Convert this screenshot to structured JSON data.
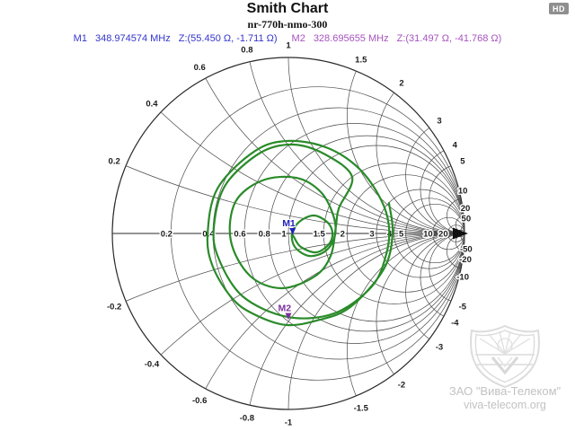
{
  "header": {
    "title": "Smith Chart",
    "subtitle": "nr-770h-nmo-300"
  },
  "badge": {
    "label": "HD"
  },
  "markers": [
    {
      "id": "M1",
      "frequency": "348.974574 MHz",
      "impedance": "Z:(55.450 Ω, -1.711 Ω)",
      "color": "#3434cd"
    },
    {
      "id": "M2",
      "frequency": "328.695655 MHz",
      "impedance": "Z:(31.497 Ω, -41.768 Ω)",
      "color": "#a653c0"
    }
  ],
  "watermark": {
    "line1": "ЗАО \"Вива-Телеком\"",
    "line2": "viva-telecom.org"
  },
  "chart_data": {
    "type": "smith",
    "title": "Smith Chart",
    "trace_name": "nr-770h-nmo-300",
    "grid_color": "#4a4a4a",
    "outer_color": "#2a2a2a",
    "resistance_circles": [
      0.2,
      0.4,
      0.6,
      0.8,
      1,
      1.5,
      2,
      3,
      4,
      5,
      10,
      20,
      50
    ],
    "reactance_values": [
      0.2,
      0.4,
      0.6,
      0.8,
      1,
      1.5,
      2,
      3,
      4,
      5,
      10,
      20,
      50
    ],
    "axis_label_values": [
      0.2,
      0.4,
      0.6,
      0.8,
      1,
      1.5,
      2,
      3,
      4,
      5,
      10,
      20
    ],
    "trace": {
      "color": "#2a8b2a",
      "gamma_points": [
        [
          0.571,
          0.173
        ],
        [
          0.592,
          0.0
        ],
        [
          0.541,
          -0.204
        ],
        [
          0.352,
          -0.418
        ],
        [
          0.168,
          -0.493
        ],
        [
          -0.015,
          -0.52
        ],
        [
          -0.199,
          -0.457
        ],
        [
          -0.321,
          -0.367
        ],
        [
          -0.429,
          -0.189
        ],
        [
          -0.459,
          -0.01
        ],
        [
          -0.403,
          0.255
        ],
        [
          -0.189,
          0.469
        ],
        [
          0.005,
          0.526
        ],
        [
          0.224,
          0.485
        ],
        [
          0.403,
          0.367
        ],
        [
          0.525,
          0.194
        ],
        [
          0.571,
          0.041
        ],
        [
          0.556,
          -0.117
        ],
        [
          0.474,
          -0.301
        ],
        [
          0.26,
          -0.454
        ],
        [
          -0.005,
          -0.474
        ],
        [
          -0.26,
          -0.357
        ],
        [
          -0.398,
          -0.138
        ],
        [
          -0.423,
          0.041
        ],
        [
          -0.357,
          0.276
        ],
        [
          -0.158,
          0.459
        ],
        [
          0.026,
          0.505
        ],
        [
          0.209,
          0.449
        ],
        [
          0.362,
          0.321
        ],
        [
          0.286,
          0.143
        ],
        [
          0.27,
          0.041
        ],
        [
          0.24,
          -0.128
        ],
        [
          0.148,
          -0.245
        ],
        [
          -0.041,
          -0.311
        ],
        [
          -0.219,
          -0.24
        ],
        [
          -0.327,
          -0.041
        ],
        [
          -0.301,
          0.179
        ],
        [
          -0.148,
          0.301
        ],
        [
          0.046,
          0.316
        ],
        [
          0.184,
          0.235
        ],
        [
          0.255,
          0.102
        ],
        [
          0.265,
          -0.01
        ],
        [
          0.214,
          -0.097
        ],
        [
          0.122,
          -0.128
        ],
        [
          0.041,
          -0.082
        ],
        [
          0.02,
          -0.005
        ],
        [
          0.061,
          0.066
        ],
        [
          0.143,
          0.102
        ],
        [
          0.219,
          0.066
        ],
        [
          0.25,
          0.005
        ],
        [
          0.23,
          -0.061
        ],
        [
          0.158,
          -0.107
        ],
        [
          0.071,
          -0.077
        ],
        [
          0.031,
          -0.02
        ],
        [
          0.026,
          -0.01
        ]
      ]
    },
    "chart_markers": [
      {
        "id": "M1",
        "gamma": [
          0.052,
          -0.015
        ],
        "impedance_ohms": [
          55.45,
          -1.711
        ],
        "color": "#2121bd"
      },
      {
        "id": "M2",
        "gamma": [
          0.028,
          -0.498
        ],
        "impedance_ohms": [
          31.497,
          -41.768
        ],
        "color": "#7d2e9e"
      }
    ],
    "endpoint_marker": {
      "gamma": [
        1,
        0
      ],
      "color": "#111111"
    }
  }
}
